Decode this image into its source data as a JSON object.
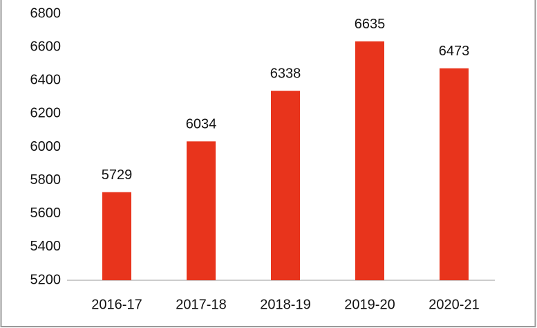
{
  "chart_data": {
    "type": "bar",
    "categories": [
      "2016-17",
      "2017-18",
      "2018-19",
      "2019-20",
      "2020-21"
    ],
    "values": [
      5729,
      6034,
      6338,
      6635,
      6473
    ],
    "color": "#e8341c",
    "ylim": [
      5200,
      6800
    ],
    "yticks": [
      5200,
      5400,
      5600,
      5800,
      6000,
      6200,
      6400,
      6600,
      6800
    ],
    "grid": false
  }
}
